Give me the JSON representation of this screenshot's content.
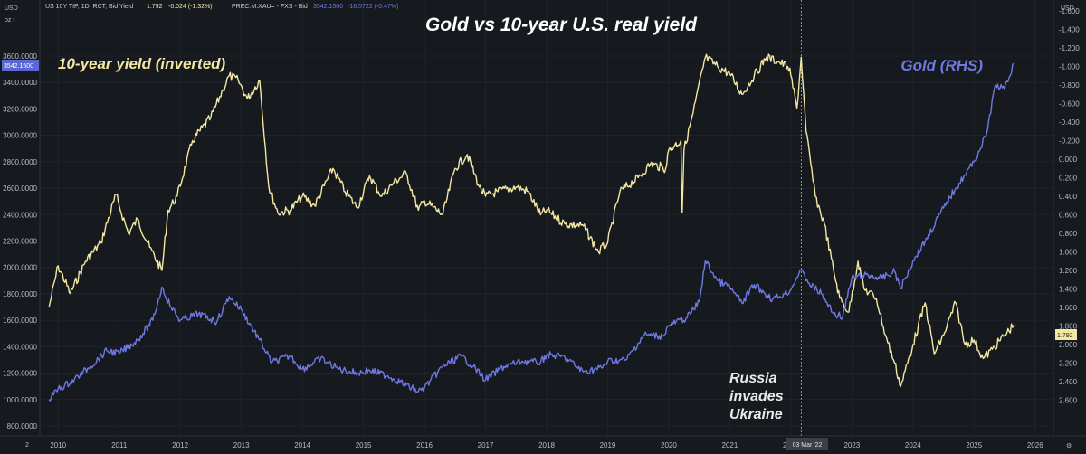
{
  "header": {
    "left_unit": "USD",
    "left_subunit": "oz t",
    "right_unit": "USD",
    "series1_text": "US 10Y TIP, 1D, RCT, Bid Yield",
    "series1_last": "1.792",
    "series1_change": "-0.024 (-1.32%)",
    "series2_text": "PREC.M.XAU= - FXS - Bid",
    "series2_last": "3542.1500",
    "series2_change": "-16.5722 (-0.47%)",
    "left_settings": "2",
    "right_settings": "⚙"
  },
  "chart_data": {
    "type": "line",
    "title": "Gold vs 10-year U.S. real yield",
    "series": [
      {
        "name": "10-year yield (inverted)",
        "axis": "right",
        "color": "#f3e7a2",
        "x": [
          2009.85,
          2010.0,
          2010.2,
          2010.45,
          2010.7,
          2010.95,
          2011.0,
          2011.15,
          2011.3,
          2011.5,
          2011.7,
          2011.8,
          2011.95,
          2012.2,
          2012.5,
          2012.7,
          2012.8,
          2012.95,
          2013.1,
          2013.3,
          2013.45,
          2013.6,
          2013.8,
          2014.0,
          2014.2,
          2014.5,
          2014.7,
          2014.9,
          2015.1,
          2015.3,
          2015.5,
          2015.7,
          2015.9,
          2016.0,
          2016.3,
          2016.5,
          2016.7,
          2016.9,
          2017.0,
          2017.2,
          2017.5,
          2017.7,
          2017.9,
          2018.0,
          2018.3,
          2018.6,
          2018.85,
          2019.0,
          2019.2,
          2019.5,
          2019.7,
          2019.95,
          2020.0,
          2020.1,
          2020.2,
          2020.22,
          2020.25,
          2020.4,
          2020.6,
          2020.8,
          2021.0,
          2021.2,
          2021.4,
          2021.6,
          2021.8,
          2021.95,
          2022.0,
          2022.1,
          2022.17,
          2022.25,
          2022.4,
          2022.55,
          2022.7,
          2022.8,
          2022.95,
          2023.1,
          2023.2,
          2023.4,
          2023.55,
          2023.7,
          2023.8,
          2024.0,
          2024.2,
          2024.35,
          2024.5,
          2024.7,
          2024.85,
          2025.0,
          2025.15,
          2025.3,
          2025.5,
          2025.65
        ],
        "y": [
          1.6,
          1.15,
          1.45,
          1.1,
          0.9,
          0.38,
          0.5,
          0.8,
          0.65,
          0.95,
          1.2,
          0.55,
          0.4,
          -0.2,
          -0.45,
          -0.75,
          -0.9,
          -0.85,
          -0.65,
          -0.85,
          0.3,
          0.58,
          0.55,
          0.4,
          0.5,
          0.1,
          0.35,
          0.52,
          0.18,
          0.4,
          0.25,
          0.15,
          0.55,
          0.45,
          0.6,
          0.1,
          -0.05,
          0.3,
          0.4,
          0.35,
          0.3,
          0.35,
          0.6,
          0.55,
          0.7,
          0.72,
          1.0,
          0.9,
          0.35,
          0.2,
          0.05,
          0.1,
          -0.1,
          -0.15,
          -0.2,
          0.58,
          -0.1,
          -0.5,
          -1.1,
          -1.0,
          -0.92,
          -0.7,
          -0.9,
          -1.1,
          -1.05,
          -1.0,
          -0.9,
          -0.55,
          -1.1,
          -0.3,
          0.4,
          0.7,
          1.2,
          1.5,
          1.65,
          1.1,
          1.4,
          1.5,
          1.9,
          2.2,
          2.45,
          2.0,
          1.55,
          2.1,
          1.9,
          1.55,
          2.0,
          1.95,
          2.15,
          2.05,
          1.9,
          1.79
        ]
      },
      {
        "name": "Gold (RHS)",
        "axis": "left",
        "color": "#6e79e3",
        "x": [
          2009.85,
          2010.0,
          2010.2,
          2010.5,
          2010.8,
          2011.0,
          2011.3,
          2011.55,
          2011.7,
          2011.85,
          2012.0,
          2012.3,
          2012.6,
          2012.8,
          2013.0,
          2013.3,
          2013.5,
          2013.8,
          2014.0,
          2014.3,
          2014.6,
          2014.9,
          2015.1,
          2015.4,
          2015.7,
          2015.9,
          2016.0,
          2016.3,
          2016.6,
          2016.8,
          2017.0,
          2017.3,
          2017.6,
          2017.9,
          2018.0,
          2018.3,
          2018.6,
          2018.9,
          2019.0,
          2019.3,
          2019.6,
          2019.9,
          2020.0,
          2020.3,
          2020.5,
          2020.6,
          2020.8,
          2021.0,
          2021.2,
          2021.4,
          2021.7,
          2021.9,
          2022.0,
          2022.15,
          2022.3,
          2022.5,
          2022.7,
          2022.85,
          2023.0,
          2023.2,
          2023.5,
          2023.7,
          2023.8,
          2024.0,
          2024.2,
          2024.5,
          2024.7,
          2024.85,
          2025.0,
          2025.2,
          2025.35,
          2025.5,
          2025.65
        ],
        "y": [
          1000,
          1080,
          1130,
          1240,
          1370,
          1350,
          1450,
          1600,
          1850,
          1700,
          1600,
          1650,
          1590,
          1780,
          1680,
          1450,
          1280,
          1330,
          1230,
          1310,
          1230,
          1200,
          1220,
          1180,
          1110,
          1060,
          1090,
          1250,
          1330,
          1250,
          1150,
          1250,
          1290,
          1280,
          1340,
          1320,
          1210,
          1240,
          1290,
          1300,
          1490,
          1480,
          1560,
          1620,
          1740,
          2050,
          1900,
          1850,
          1730,
          1870,
          1760,
          1800,
          1830,
          1980,
          1880,
          1800,
          1650,
          1630,
          1920,
          1940,
          1920,
          1970,
          1840,
          2050,
          2200,
          2450,
          2600,
          2700,
          2800,
          3000,
          3380,
          3350,
          3542
        ]
      }
    ],
    "y_left": {
      "min": 800,
      "max": 3600,
      "ticks": [
        "800.0000",
        "1000.0000",
        "1200.0000",
        "1400.0000",
        "1600.0000",
        "1800.0000",
        "2000.0000",
        "2200.0000",
        "2400.0000",
        "2600.0000",
        "2800.0000",
        "3000.0000",
        "3200.0000",
        "3400.0000",
        "3600.0000"
      ],
      "last_value": "3542.1500"
    },
    "y_right": {
      "min": -1.6,
      "max": 2.8,
      "inverted": true,
      "ticks": [
        "-1.600",
        "-1.400",
        "-1.200",
        "-1.000",
        "-0.800",
        "-0.600",
        "-0.400",
        "-0.200",
        "0.000",
        "0.200",
        "0.400",
        "0.600",
        "0.800",
        "1.000",
        "1.200",
        "1.400",
        "1.600",
        "1.800",
        "2.000",
        "2.200",
        "2.400",
        "2.600"
      ],
      "last_value": "1.792"
    },
    "x_axis": {
      "min": 2009.7,
      "max": 2026.3,
      "ticks": [
        "2010",
        "2011",
        "2012",
        "2013",
        "2014",
        "2015",
        "2016",
        "2017",
        "2018",
        "2019",
        "2020",
        "2021",
        "2022",
        "2023",
        "2024",
        "2025",
        "2026"
      ]
    },
    "annotations": [
      {
        "id": "russia",
        "x": 2022.17,
        "date_label": "03 Mar '22",
        "lines": [
          "Russia",
          "invades",
          "Ukraine"
        ]
      }
    ],
    "series_labels": {
      "yield": "10-year yield (inverted)",
      "gold": "Gold (RHS)"
    }
  }
}
